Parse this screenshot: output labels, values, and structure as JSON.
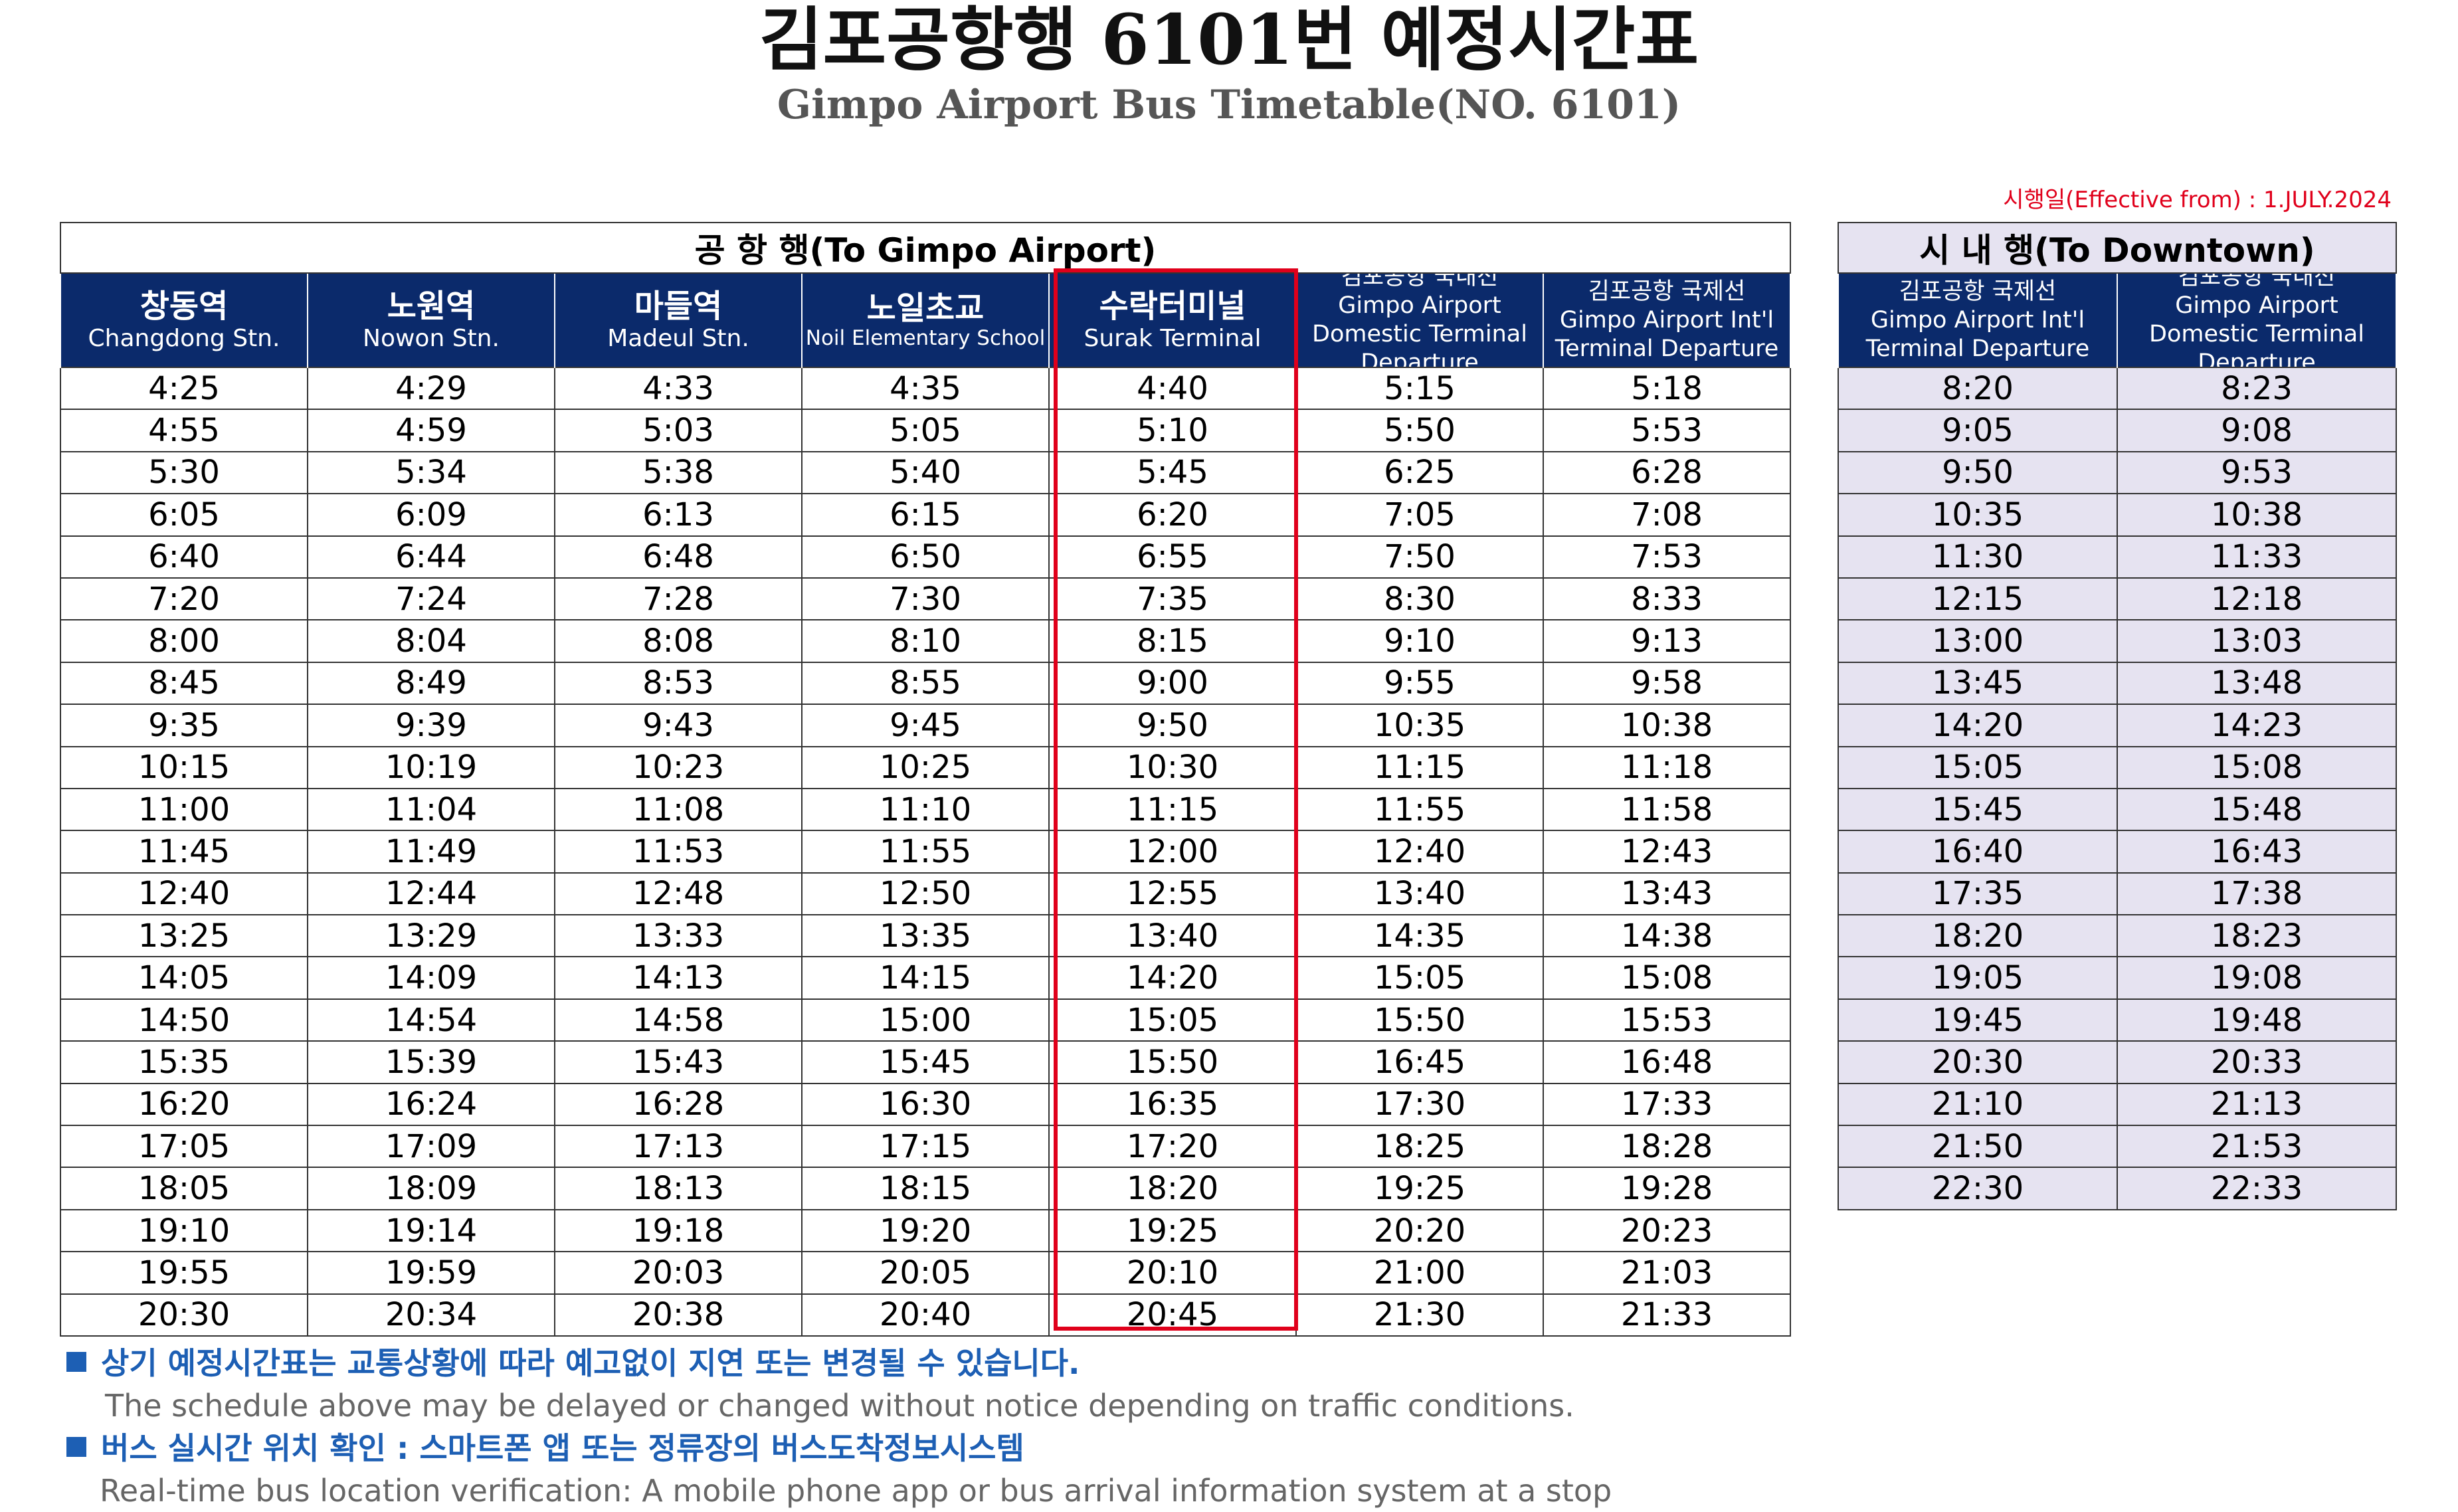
{
  "title": "김포공항행 6101번 예정시간표",
  "subtitle": "Gimpo Airport Bus Timetable(NO. 6101)",
  "effective_date": "시행일(Effective from) : 1.JULY.2024",
  "to_airport": {
    "caption": "공 항 행(To Gimpo Airport)",
    "headers": [
      {
        "ko": "창동역",
        "en": "Changdong Stn."
      },
      {
        "ko": "노원역",
        "en": "Nowon Stn."
      },
      {
        "ko": "마들역",
        "en": "Madeul Stn."
      },
      {
        "ko": "노일초교",
        "en": "Noil Elementary School"
      },
      {
        "ko": "수락터미널",
        "en": "Surak Terminal"
      },
      {
        "l1": "김포공항 국내선",
        "l2": "Gimpo Airport",
        "l3": "Domestic Terminal",
        "l4": "Departure"
      },
      {
        "l1": "김포공항 국제선",
        "l2": "Gimpo Airport  Int'l",
        "l3": "Terminal Departure"
      }
    ],
    "rows": [
      [
        "4:25",
        "4:29",
        "4:33",
        "4:35",
        "4:40",
        "5:15",
        "5:18"
      ],
      [
        "4:55",
        "4:59",
        "5:03",
        "5:05",
        "5:10",
        "5:50",
        "5:53"
      ],
      [
        "5:30",
        "5:34",
        "5:38",
        "5:40",
        "5:45",
        "6:25",
        "6:28"
      ],
      [
        "6:05",
        "6:09",
        "6:13",
        "6:15",
        "6:20",
        "7:05",
        "7:08"
      ],
      [
        "6:40",
        "6:44",
        "6:48",
        "6:50",
        "6:55",
        "7:50",
        "7:53"
      ],
      [
        "7:20",
        "7:24",
        "7:28",
        "7:30",
        "7:35",
        "8:30",
        "8:33"
      ],
      [
        "8:00",
        "8:04",
        "8:08",
        "8:10",
        "8:15",
        "9:10",
        "9:13"
      ],
      [
        "8:45",
        "8:49",
        "8:53",
        "8:55",
        "9:00",
        "9:55",
        "9:58"
      ],
      [
        "9:35",
        "9:39",
        "9:43",
        "9:45",
        "9:50",
        "10:35",
        "10:38"
      ],
      [
        "10:15",
        "10:19",
        "10:23",
        "10:25",
        "10:30",
        "11:15",
        "11:18"
      ],
      [
        "11:00",
        "11:04",
        "11:08",
        "11:10",
        "11:15",
        "11:55",
        "11:58"
      ],
      [
        "11:45",
        "11:49",
        "11:53",
        "11:55",
        "12:00",
        "12:40",
        "12:43"
      ],
      [
        "12:40",
        "12:44",
        "12:48",
        "12:50",
        "12:55",
        "13:40",
        "13:43"
      ],
      [
        "13:25",
        "13:29",
        "13:33",
        "13:35",
        "13:40",
        "14:35",
        "14:38"
      ],
      [
        "14:05",
        "14:09",
        "14:13",
        "14:15",
        "14:20",
        "15:05",
        "15:08"
      ],
      [
        "14:50",
        "14:54",
        "14:58",
        "15:00",
        "15:05",
        "15:50",
        "15:53"
      ],
      [
        "15:35",
        "15:39",
        "15:43",
        "15:45",
        "15:50",
        "16:45",
        "16:48"
      ],
      [
        "16:20",
        "16:24",
        "16:28",
        "16:30",
        "16:35",
        "17:30",
        "17:33"
      ],
      [
        "17:05",
        "17:09",
        "17:13",
        "17:15",
        "17:20",
        "18:25",
        "18:28"
      ],
      [
        "18:05",
        "18:09",
        "18:13",
        "18:15",
        "18:20",
        "19:25",
        "19:28"
      ],
      [
        "19:10",
        "19:14",
        "19:18",
        "19:20",
        "19:25",
        "20:20",
        "20:23"
      ],
      [
        "19:55",
        "19:59",
        "20:03",
        "20:05",
        "20:10",
        "21:00",
        "21:03"
      ],
      [
        "20:30",
        "20:34",
        "20:38",
        "20:40",
        "20:45",
        "21:30",
        "21:33"
      ]
    ]
  },
  "to_downtown": {
    "caption": "시 내 행(To Downtown)",
    "headers": [
      {
        "l1": "김포공항 국제선",
        "l2": "Gimpo Airport  Int'l",
        "l3": "Terminal Departure"
      },
      {
        "l1": "김포공항 국내선",
        "l2": "Gimpo Airport",
        "l3": "Domestic Terminal",
        "l4": "Departure"
      }
    ],
    "rows": [
      [
        "8:20",
        "8:23"
      ],
      [
        "9:05",
        "9:08"
      ],
      [
        "9:50",
        "9:53"
      ],
      [
        "10:35",
        "10:38"
      ],
      [
        "11:30",
        "11:33"
      ],
      [
        "12:15",
        "12:18"
      ],
      [
        "13:00",
        "13:03"
      ],
      [
        "13:45",
        "13:48"
      ],
      [
        "14:20",
        "14:23"
      ],
      [
        "15:05",
        "15:08"
      ],
      [
        "15:45",
        "15:48"
      ],
      [
        "16:40",
        "16:43"
      ],
      [
        "17:35",
        "17:38"
      ],
      [
        "18:20",
        "18:23"
      ],
      [
        "19:05",
        "19:08"
      ],
      [
        "19:45",
        "19:48"
      ],
      [
        "20:30",
        "20:33"
      ],
      [
        "21:10",
        "21:13"
      ],
      [
        "21:50",
        "21:53"
      ],
      [
        "22:30",
        "22:33"
      ]
    ]
  },
  "notes": {
    "n1_ko": "상기 예정시간표는 교통상황에 따라 예고없이 지연 또는 변경될 수 있습니다.",
    "n1_en": "The schedule above may be delayed or changed without notice depending on traffic conditions.",
    "n2_ko": "버스 실시간 위치 확인 : 스마트폰 앱 또는 정류장의 버스도착정보시스템",
    "n2_en": "Real-time bus location verification: A mobile phone app or bus arrival information system at a stop"
  },
  "colors": {
    "header_navy": "#0b2a6b",
    "downtown_fill": "#e6e3f1",
    "highlight_red": "#e0001b",
    "note_blue": "#1d5fb4"
  }
}
